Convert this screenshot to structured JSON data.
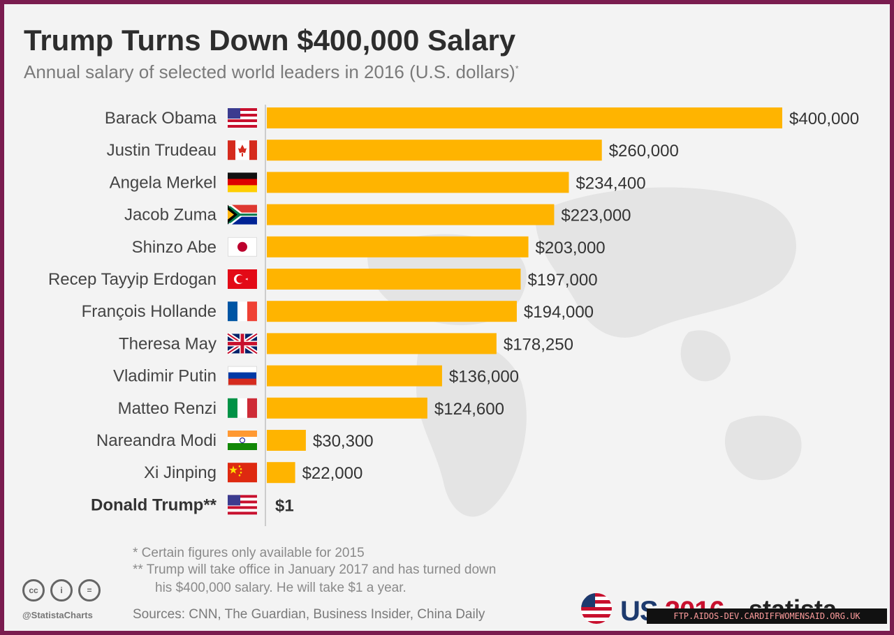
{
  "header": {
    "title": "Trump Turns Down $400,000 Salary",
    "subtitle": "Annual salary of selected world leaders in 2016 (U.S. dollars)",
    "subtitle_mark": "*"
  },
  "colors": {
    "bar": "#ffb400",
    "axis": "#cccccc",
    "map": "#e2e2e2"
  },
  "chart_data": {
    "type": "bar",
    "orientation": "horizontal",
    "categories": [
      "Barack Obama",
      "Justin Trudeau",
      "Angela Merkel",
      "Jacob Zuma",
      "Shinzo Abe",
      "Recep Tayyip Erdogan",
      "François Hollande",
      "Theresa May",
      "Vladimir Putin",
      "Matteo Renzi",
      "Nareandra Modi",
      "Xi Jinping",
      "Donald Trump**"
    ],
    "values": [
      400000,
      260000,
      234400,
      223000,
      203000,
      197000,
      194000,
      178250,
      136000,
      124600,
      30300,
      22000,
      1
    ],
    "value_labels": [
      "$400,000",
      "$260,000",
      "$234,400",
      "$223,000",
      "$203,000",
      "$197,000",
      "$194,000",
      "$178,250",
      "$136,000",
      "$124,600",
      "$30,300",
      "$22,000",
      "$1"
    ],
    "flags": [
      "us-flag-icon",
      "canada-flag-icon",
      "germany-flag-icon",
      "south-africa-flag-icon",
      "japan-flag-icon",
      "turkey-flag-icon",
      "france-flag-icon",
      "uk-flag-icon",
      "russia-flag-icon",
      "italy-flag-icon",
      "india-flag-icon",
      "china-flag-icon",
      "us-flag-icon"
    ],
    "highlight": [
      "Donald Trump**"
    ],
    "xlim": [
      0,
      400000
    ],
    "grid": false,
    "legend": "none",
    "title": "Trump Turns Down $400,000 Salary",
    "subtitle": "Annual salary of selected world leaders in 2016 (U.S. dollars)"
  },
  "footer": {
    "footnote_1": "*  Certain figures only available for 2015",
    "footnote_2": "** Trump will take office in January 2017 and has turned down",
    "footnote_2b": "his $400,000 salary. He will take $1 a year.",
    "sources": "Sources: CNN, The Guardian, Business Insider, China Daily",
    "handle": "@StatistaCharts",
    "cc_icons": [
      "cc-icon",
      "attribution-icon",
      "no-derivatives-icon"
    ],
    "cc_glyphs": [
      "cc",
      "i",
      "="
    ],
    "brand_us": "US",
    "brand_year": "2016",
    "brand_statista": "statista",
    "watermark": "FTP.AIDOS-DEV.CARDIFFWOMENSAID.ORG.UK"
  }
}
